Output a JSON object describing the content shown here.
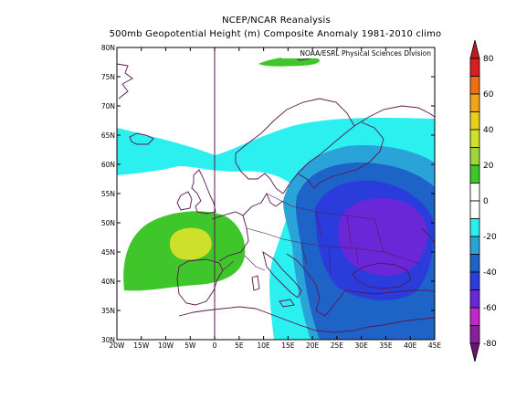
{
  "title": {
    "line1": "NCEP/NCAR Reanalysis",
    "line2": "500mb Geopotential Height (m) Composite Anomaly 1981-2010 climo"
  },
  "credit": "NOAA/ESRL Physical Sciences Division",
  "map": {
    "lon_range": [
      -20,
      45
    ],
    "lat_range": [
      30,
      80
    ],
    "lon_ticks": [
      "20W",
      "15W",
      "10W",
      "5W",
      "0",
      "5E",
      "10E",
      "15E",
      "20E",
      "25E",
      "30E",
      "35E",
      "40E",
      "45E"
    ],
    "lat_ticks": [
      "30N",
      "35N",
      "40N",
      "45N",
      "50N",
      "55N",
      "60N",
      "65N",
      "70N",
      "75N",
      "80N"
    ],
    "prime_meridian": true
  },
  "colorbar": {
    "labels": [
      "80",
      "60",
      "40",
      "20",
      "0",
      "-20",
      "-40",
      "-60",
      "-80"
    ],
    "colors": {
      "pos_70_80": "#d81f1f",
      "pos_60_70": "#ef6e12",
      "pos_50_60": "#f2a31b",
      "pos_40_50": "#e9cf1c",
      "pos_30_40": "#cfe02a",
      "pos_20_30": "#a0d63a",
      "pos_10_20": "#3fc62a",
      "zero_band": "#ffffff",
      "neg_10_20": "#2cf0f0",
      "neg_20_30": "#2aa4d8",
      "neg_30_40": "#1e64c8",
      "neg_40_50": "#2a3cdc",
      "neg_50_60": "#6a27d8",
      "neg_60_70": "#c128c8",
      "neg_70_80": "#8a1f9c",
      "neg_80_plus": "#6a1478"
    }
  }
}
